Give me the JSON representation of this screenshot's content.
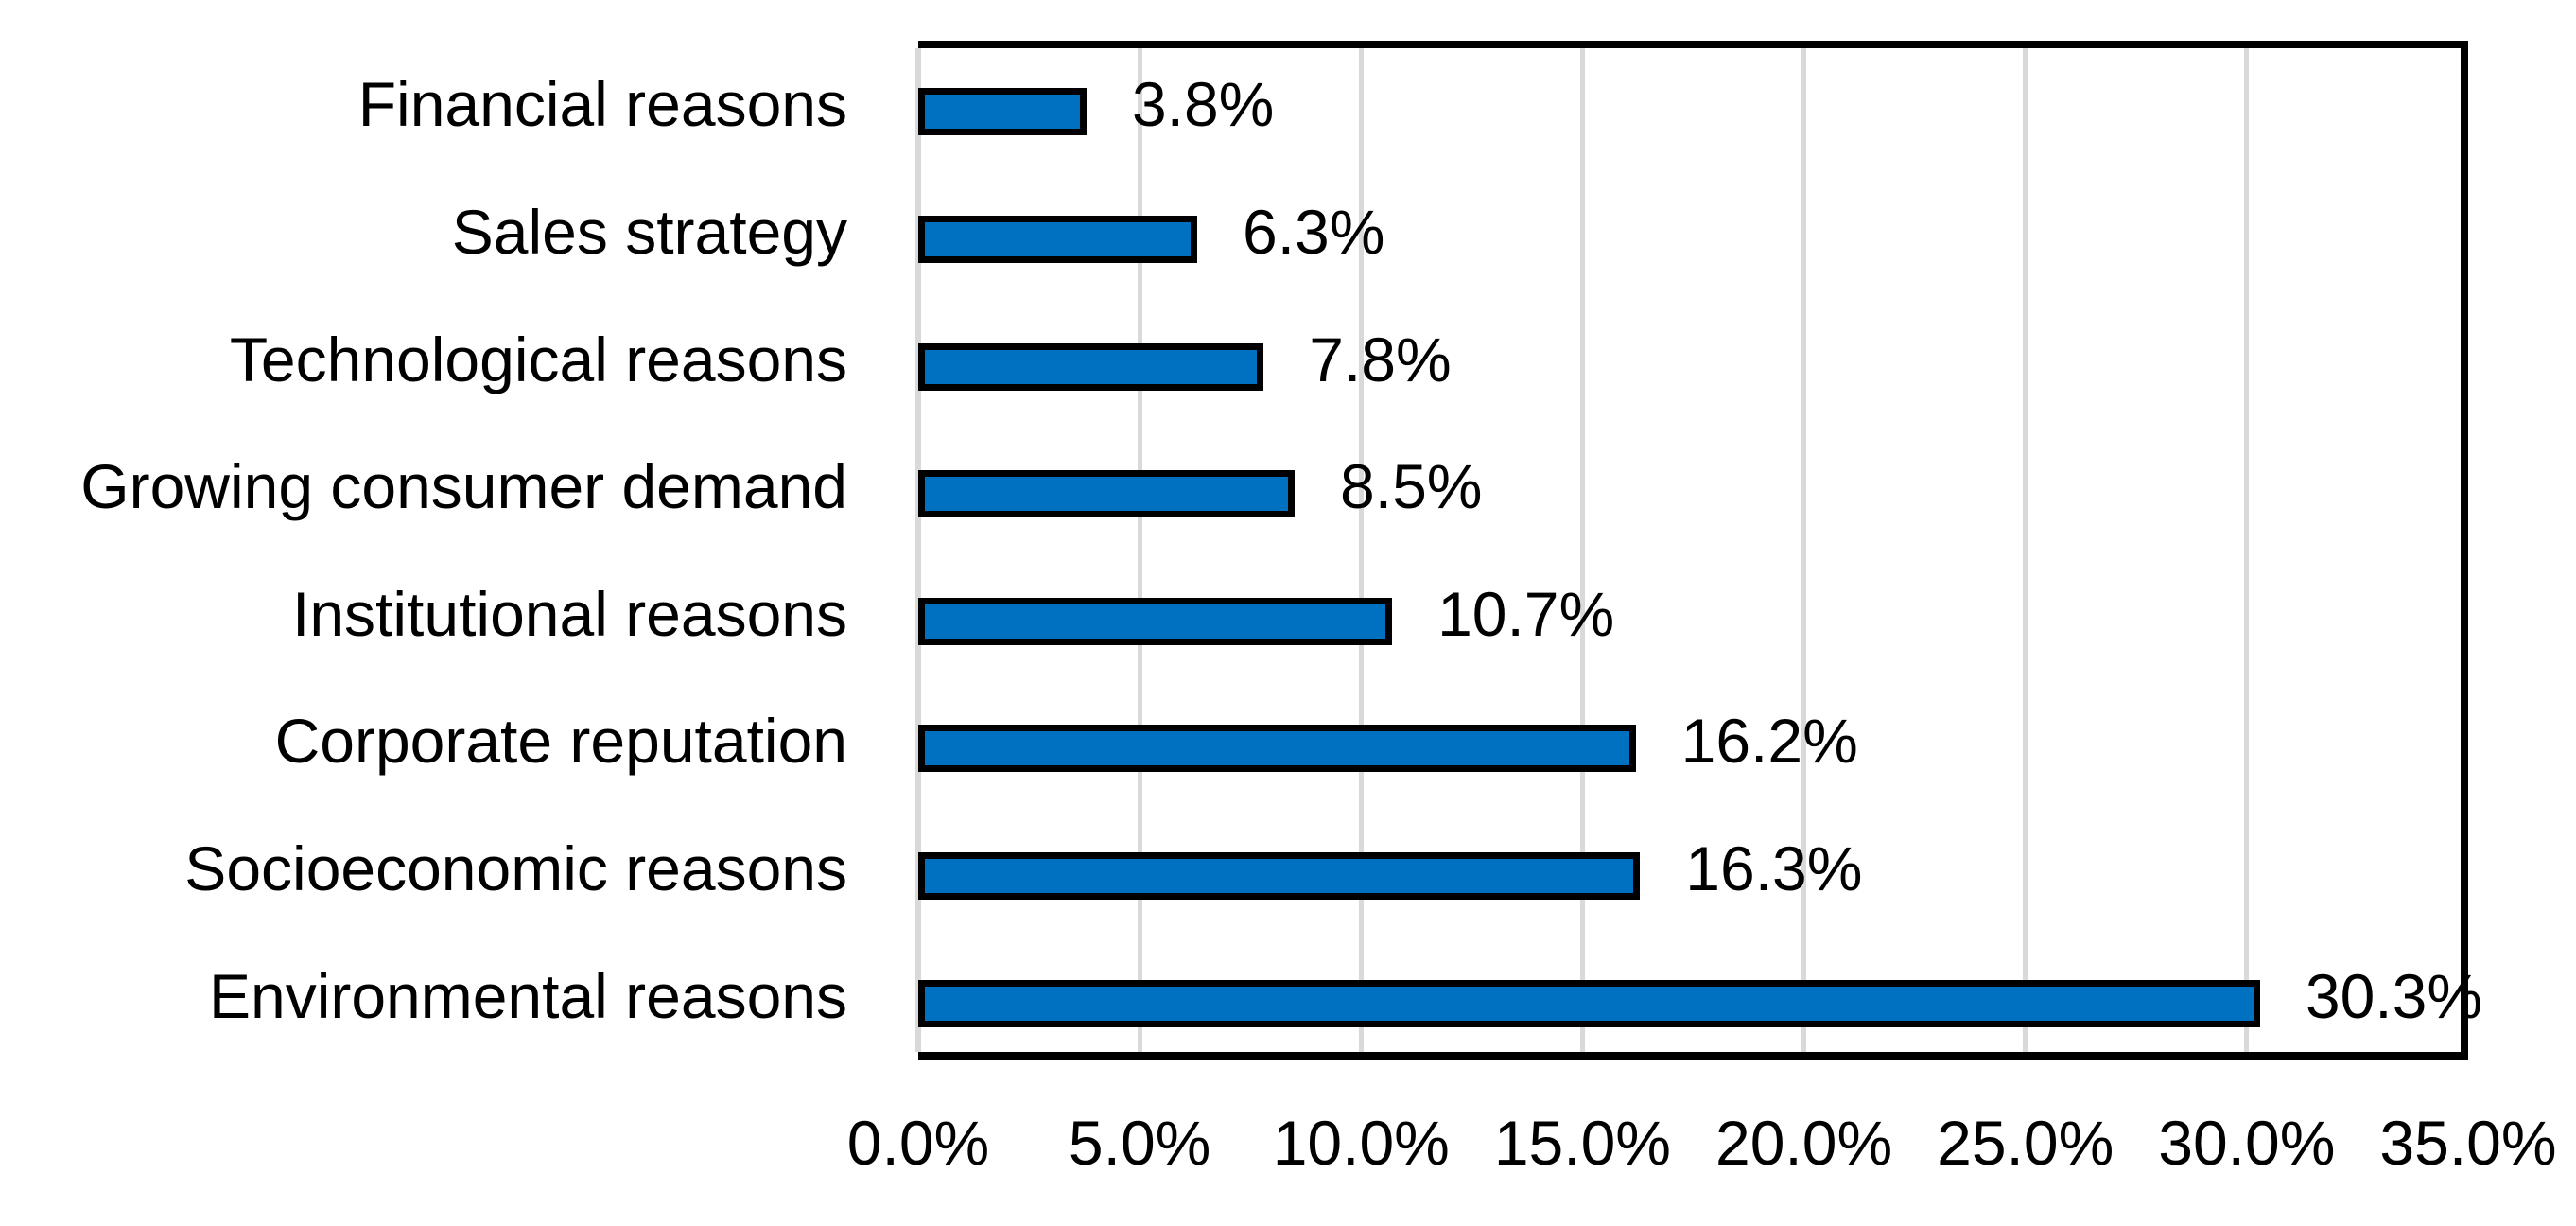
{
  "chart_data": {
    "type": "bar",
    "orientation": "horizontal",
    "title": "",
    "xlabel": "",
    "ylabel": "",
    "xlim": [
      0,
      35
    ],
    "grid": true,
    "legend": false,
    "categories": [
      "Financial reasons",
      "Sales strategy",
      "Technological reasons",
      "Growing consumer demand",
      "Institutional reasons",
      "Corporate reputation",
      "Socioeconomic reasons",
      "Environmental reasons"
    ],
    "values": [
      3.8,
      6.3,
      7.8,
      8.5,
      10.7,
      16.2,
      16.3,
      30.3
    ],
    "data_labels": [
      "3.8%",
      "6.3%",
      "7.8%",
      "8.5%",
      "10.7%",
      "16.2%",
      "16.3%",
      "30.3%"
    ],
    "x_tick_labels": [
      "0.0%",
      "5.0%",
      "10.0%",
      "15.0%",
      "20.0%",
      "25.0%",
      "30.0%",
      "35.0%"
    ],
    "x_tick_values": [
      0,
      5,
      10,
      15,
      20,
      25,
      30,
      35
    ],
    "gridline_values": [
      5,
      10,
      15,
      20,
      25,
      30
    ],
    "colors": {
      "bar_fill": "#0070C0",
      "bar_border": "#000000",
      "gridline": "#D9D9D9",
      "axis_line": "#D9D9D9",
      "plot_border": "#000000",
      "text": "#000000",
      "background": "#FFFFFF"
    }
  }
}
